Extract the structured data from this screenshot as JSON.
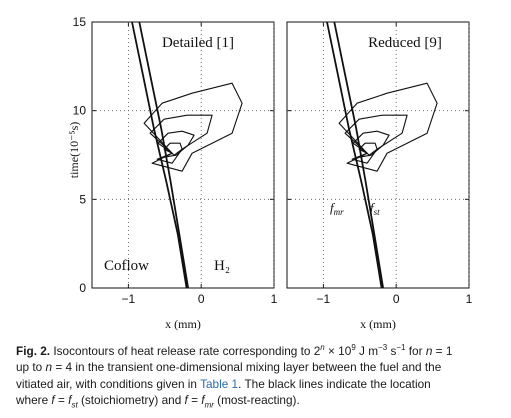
{
  "figure": {
    "ylabel": "time(10⁻⁵s)",
    "xlabel": "x (mm)",
    "y_ticks": [
      "0",
      "5",
      "10",
      "15"
    ],
    "x_ticks": [
      "−1",
      "0",
      "1"
    ],
    "panels": [
      {
        "title": "Detailed [1]",
        "labels": [
          "Coflow",
          "H₂"
        ]
      },
      {
        "title": "Reduced [9]",
        "labels": [
          "f",
          "mr",
          "f",
          "st"
        ]
      }
    ]
  },
  "chart_data": {
    "type": "line",
    "panels": [
      "Detailed [1]",
      "Reduced [9]"
    ],
    "xlabel": "x (mm)",
    "ylabel": "time(10⁻⁵s)",
    "xlim": [
      -1.5,
      1.0
    ],
    "ylim": [
      0,
      15
    ],
    "series": [
      {
        "name": "f = f_st",
        "points": [
          [
            -0.85,
            15
          ],
          [
            -0.7,
            12
          ],
          [
            -0.55,
            9
          ],
          [
            -0.42,
            6
          ],
          [
            -0.3,
            3
          ],
          [
            -0.18,
            0
          ]
        ]
      },
      {
        "name": "f = f_mr",
        "points": [
          [
            -0.95,
            15
          ],
          [
            -0.8,
            12
          ],
          [
            -0.65,
            9
          ],
          [
            -0.48,
            6
          ],
          [
            -0.32,
            3
          ],
          [
            -0.2,
            0
          ]
        ]
      }
    ],
    "contour_levels": 4,
    "grid": true
  },
  "caption": {
    "label": "Fig. 2.",
    "line1": "Isocontours of heat release rate corresponding to 2",
    "sup_n": "n",
    "line1b": " × 10",
    "sup_9": "9",
    "line1c": " J m",
    "sup_m3": "−3",
    "line1d": " s",
    "sup_m1": "−1",
    "line1e": " for ",
    "n": "n",
    "line1f": " = 1",
    "line2a": "up to ",
    "n2": "n",
    "line2b": " = 4 in the transient one-dimensional mixing layer between the fuel and the",
    "line3a": "vitiated air, with conditions given in ",
    "table_link": "Table 1",
    "line3b": ". The black lines indicate the location",
    "line4a": "where ",
    "f1": "f",
    "eq1": " = ",
    "f_st": "f",
    "st": "st",
    "line4b": " (stoichiometry) and ",
    "f2": "f",
    "eq2": " = ",
    "f_mr": "f",
    "mr": "mr",
    "line4c": " (most-reacting)."
  }
}
